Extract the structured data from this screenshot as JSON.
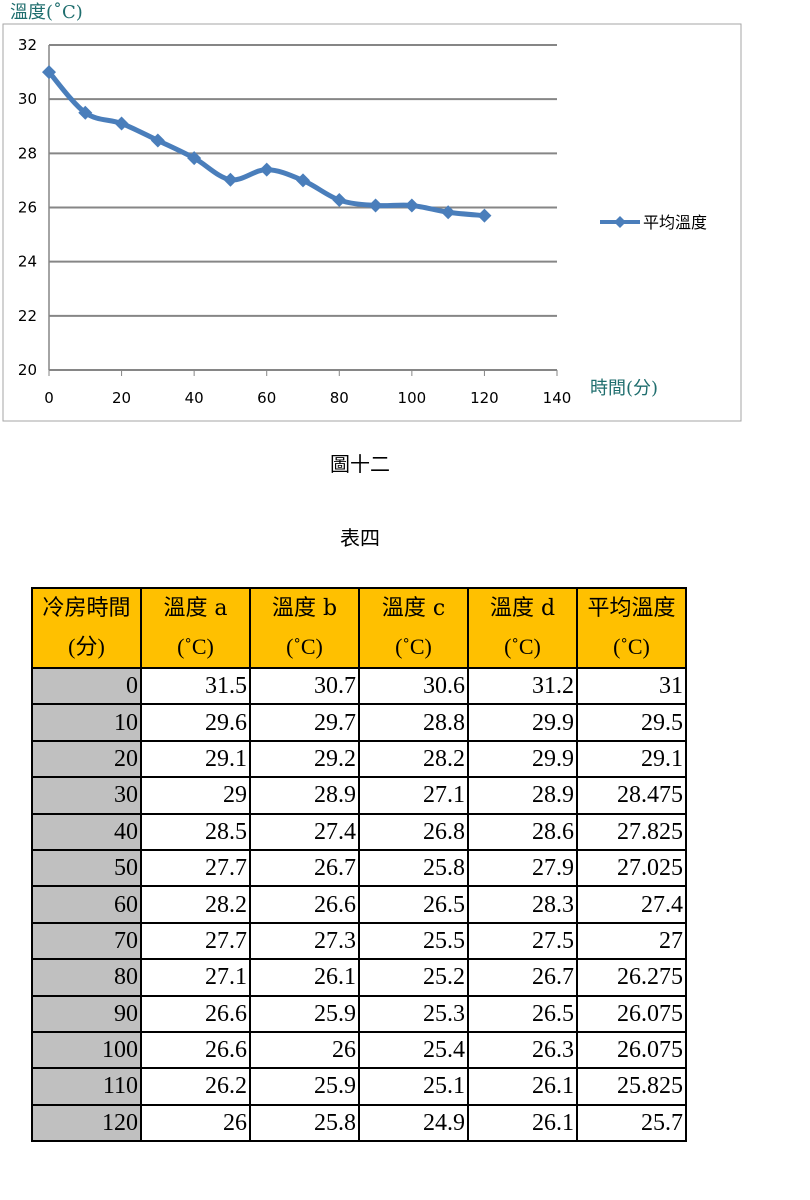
{
  "chart_data": {
    "type": "line",
    "ylabel": "溫度(˚C)",
    "xlabel": "時間(分)",
    "xlim": [
      0,
      140
    ],
    "ylim": [
      20,
      32
    ],
    "x_ticks": [
      "0",
      "20",
      "40",
      "60",
      "80",
      "100",
      "120",
      "140"
    ],
    "y_ticks": [
      "20",
      "22",
      "24",
      "26",
      "28",
      "30",
      "32"
    ],
    "grid": "horizontal",
    "legend_position": "right",
    "series": [
      {
        "name": "平均溫度",
        "color": "#4a7ebb",
        "x": [
          0,
          10,
          20,
          30,
          40,
          50,
          60,
          70,
          80,
          90,
          100,
          110,
          120
        ],
        "y": [
          31,
          29.5,
          29.1,
          28.475,
          27.825,
          27.025,
          27.4,
          27,
          26.275,
          26.075,
          26.075,
          25.825,
          25.7
        ]
      }
    ]
  },
  "figure_caption": "圖十二",
  "table_caption": "表四",
  "table": {
    "headers": [
      {
        "label": "冷房時間",
        "unit": "(分)"
      },
      {
        "label": "溫度 a",
        "unit": "(˚C)"
      },
      {
        "label": "溫度 b",
        "unit": "(˚C)"
      },
      {
        "label": "溫度 c",
        "unit": "(˚C)"
      },
      {
        "label": "溫度 d",
        "unit": "(˚C)"
      },
      {
        "label": "平均溫度",
        "unit": "(˚C)"
      }
    ],
    "rows": [
      [
        "0",
        "31.5",
        "30.7",
        "30.6",
        "31.2",
        "31"
      ],
      [
        "10",
        "29.6",
        "29.7",
        "28.8",
        "29.9",
        "29.5"
      ],
      [
        "20",
        "29.1",
        "29.2",
        "28.2",
        "29.9",
        "29.1"
      ],
      [
        "30",
        "29",
        "28.9",
        "27.1",
        "28.9",
        "28.475"
      ],
      [
        "40",
        "28.5",
        "27.4",
        "26.8",
        "28.6",
        "27.825"
      ],
      [
        "50",
        "27.7",
        "26.7",
        "25.8",
        "27.9",
        "27.025"
      ],
      [
        "60",
        "28.2",
        "26.6",
        "26.5",
        "28.3",
        "27.4"
      ],
      [
        "70",
        "27.7",
        "27.3",
        "25.5",
        "27.5",
        "27"
      ],
      [
        "80",
        "27.1",
        "26.1",
        "25.2",
        "26.7",
        "26.275"
      ],
      [
        "90",
        "26.6",
        "25.9",
        "25.3",
        "26.5",
        "26.075"
      ],
      [
        "100",
        "26.6",
        "26",
        "25.4",
        "26.3",
        "26.075"
      ],
      [
        "110",
        "26.2",
        "25.9",
        "25.1",
        "26.1",
        "25.825"
      ],
      [
        "120",
        "26",
        "25.8",
        "24.9",
        "26.1",
        "25.7"
      ]
    ]
  }
}
